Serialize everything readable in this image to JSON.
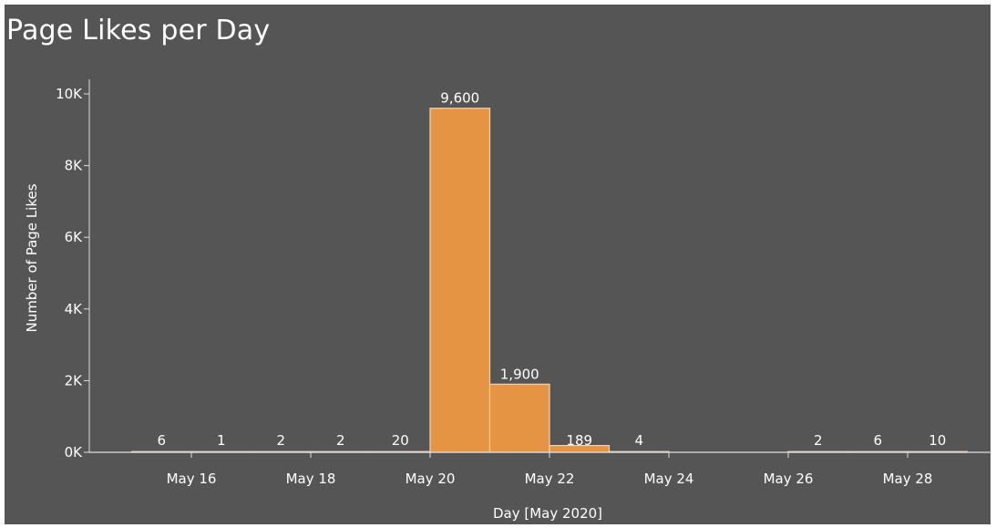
{
  "chart_data": {
    "type": "bar",
    "title": "Page Likes per Day",
    "xlabel": "Day [May 2020]",
    "ylabel": "Number of Page Likes",
    "ylim": [
      0,
      10000
    ],
    "y_ticks": [
      0,
      2000,
      4000,
      6000,
      8000,
      10000
    ],
    "y_tick_labels": [
      "0K",
      "2K",
      "4K",
      "6K",
      "8K",
      "10K"
    ],
    "x_tick_labels": [
      "May 16",
      "May 18",
      "May 20",
      "May 22",
      "May 24",
      "May 26",
      "May 28"
    ],
    "x_tick_days": [
      16,
      18,
      20,
      22,
      24,
      26,
      28
    ],
    "bins": [
      {
        "day": 15.5,
        "value": 6,
        "label": "6"
      },
      {
        "day": 16.5,
        "value": 1,
        "label": "1"
      },
      {
        "day": 17.5,
        "value": 2,
        "label": "2"
      },
      {
        "day": 18.5,
        "value": 2,
        "label": "2"
      },
      {
        "day": 19.5,
        "value": 20,
        "label": "20"
      },
      {
        "day": 20.5,
        "value": 9600,
        "label": "9,600"
      },
      {
        "day": 21.5,
        "value": 1900,
        "label": "1,900"
      },
      {
        "day": 22.5,
        "value": 189,
        "label": "189"
      },
      {
        "day": 23.5,
        "value": 4,
        "label": "4"
      },
      {
        "day": 26.5,
        "value": 2,
        "label": "2"
      },
      {
        "day": 27.5,
        "value": 6,
        "label": "6"
      },
      {
        "day": 28.5,
        "value": 10,
        "label": "10"
      }
    ],
    "grid": false,
    "colors": {
      "bar": "#E59443",
      "bar_edge": "#f3d3b0",
      "background": "#555555",
      "text": "#ffffff",
      "axis": "#dddddd"
    }
  }
}
